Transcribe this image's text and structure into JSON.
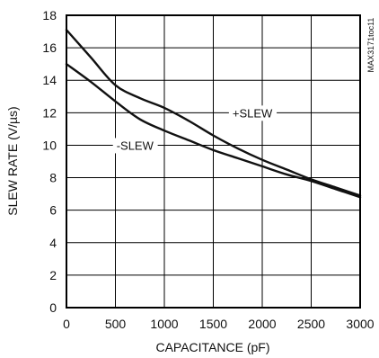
{
  "chart_data": {
    "type": "line",
    "title": "",
    "xlabel": "CAPACITANCE (pF)",
    "ylabel": "SLEW RATE (V/µs)",
    "xlim": [
      0,
      3000
    ],
    "ylim": [
      0,
      18
    ],
    "xticks": [
      "0",
      "500",
      "1000",
      "1500",
      "2000",
      "2500",
      "3000"
    ],
    "yticks": [
      "0",
      "2",
      "4",
      "6",
      "8",
      "10",
      "12",
      "14",
      "16",
      "18"
    ],
    "grid": true,
    "x": [
      0,
      250,
      500,
      750,
      1000,
      1250,
      1500,
      1750,
      2000,
      2250,
      2500,
      2750,
      3000
    ],
    "series": [
      {
        "name": "+SLEW",
        "values": [
          17.1,
          15.4,
          13.7,
          12.9,
          12.3,
          11.5,
          10.6,
          9.8,
          9.1,
          8.5,
          7.9,
          7.4,
          6.9
        ]
      },
      {
        "name": "-SLEW",
        "values": [
          15.0,
          13.9,
          12.7,
          11.6,
          10.9,
          10.3,
          9.7,
          9.2,
          8.7,
          8.2,
          7.8,
          7.3,
          6.8
        ]
      }
    ],
    "annotations": [
      {
        "text": "+SLEW",
        "x": 1900,
        "y": 12.0
      },
      {
        "text": "-SLEW",
        "x": 700,
        "y": 10.0
      }
    ],
    "code_label": "MAX3171toc11"
  }
}
